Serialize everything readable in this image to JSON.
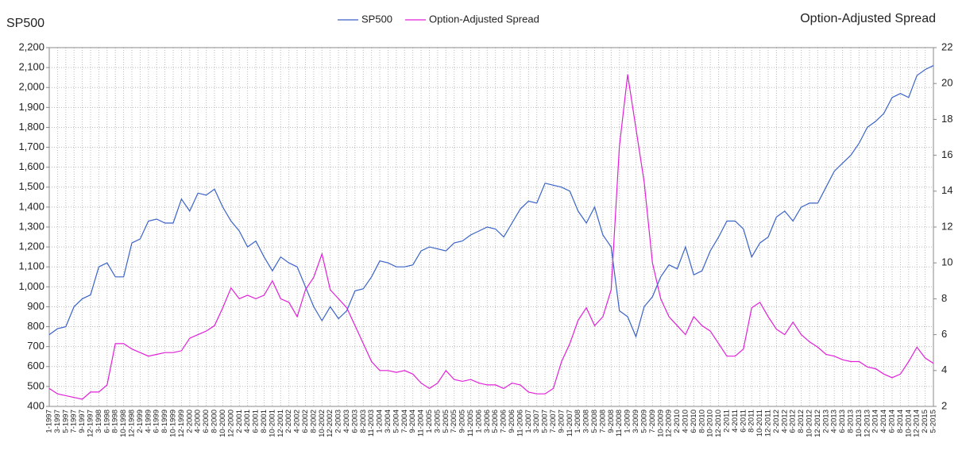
{
  "chart_data": {
    "type": "line",
    "ylabel": "SP500",
    "y2label": "Option-Adjusted Spread",
    "categories": [
      "1-1997",
      "3-1997",
      "5-1997",
      "7-1997",
      "9-1997",
      "12-1997",
      "3-1998",
      "6-1998",
      "8-1998",
      "10-1998",
      "12-1998",
      "2-1999",
      "4-1999",
      "6-1999",
      "8-1999",
      "10-1999",
      "12-1999",
      "2-2000",
      "4-2000",
      "6-2000",
      "8-2000",
      "10-2000",
      "12-2000",
      "2-2001",
      "4-2001",
      "6-2001",
      "8-2001",
      "10-2001",
      "12-2001",
      "2-2002",
      "4-2002",
      "6-2002",
      "8-2002",
      "10-2002",
      "12-2002",
      "2-2003",
      "4-2003",
      "6-2003",
      "8-2003",
      "11-2003",
      "1-2004",
      "3-2004",
      "5-2004",
      "7-2004",
      "9-2004",
      "11-2004",
      "1-2005",
      "3-2005",
      "5-2005",
      "7-2005",
      "9-2005",
      "11-2005",
      "1-2006",
      "3-2006",
      "5-2006",
      "7-2006",
      "9-2006",
      "11-2006",
      "1-2007",
      "3-2007",
      "5-2007",
      "7-2007",
      "9-2007",
      "11-2007",
      "1-2008",
      "3-2008",
      "5-2008",
      "7-2008",
      "9-2008",
      "11-2008",
      "1-2009",
      "3-2009",
      "5-2009",
      "7-2009",
      "10-2009",
      "12-2009",
      "2-2010",
      "4-2010",
      "6-2010",
      "8-2010",
      "10-2010",
      "12-2010",
      "2-2011",
      "4-2011",
      "6-2011",
      "8-2011",
      "10-2011",
      "12-2011",
      "2-2012",
      "4-2012",
      "6-2012",
      "8-2012",
      "10-2012",
      "12-2012",
      "2-2013",
      "4-2013",
      "6-2013",
      "8-2013",
      "10-2013",
      "12-2013",
      "2-2014",
      "4-2014",
      "6-2014",
      "8-2014",
      "10-2014",
      "12-2014",
      "2-2015",
      "5-2015"
    ],
    "series": [
      {
        "name": "SP500",
        "color": "#3a62c8",
        "axis": "y",
        "values": [
          760,
          790,
          800,
          900,
          940,
          960,
          1100,
          1120,
          1050,
          1050,
          1220,
          1240,
          1330,
          1340,
          1320,
          1320,
          1440,
          1380,
          1470,
          1460,
          1490,
          1400,
          1330,
          1280,
          1200,
          1230,
          1150,
          1080,
          1150,
          1120,
          1100,
          1000,
          900,
          830,
          900,
          840,
          880,
          980,
          990,
          1050,
          1130,
          1120,
          1100,
          1100,
          1110,
          1180,
          1200,
          1190,
          1180,
          1220,
          1230,
          1260,
          1280,
          1300,
          1290,
          1250,
          1320,
          1390,
          1430,
          1420,
          1520,
          1510,
          1500,
          1480,
          1380,
          1320,
          1400,
          1260,
          1200,
          880,
          850,
          750,
          900,
          950,
          1050,
          1110,
          1090,
          1200,
          1060,
          1080,
          1180,
          1250,
          1330,
          1330,
          1290,
          1150,
          1220,
          1250,
          1350,
          1380,
          1330,
          1400,
          1420,
          1420,
          1500,
          1580,
          1620,
          1660,
          1720,
          1800,
          1830,
          1870,
          1950,
          1970,
          1950,
          2060,
          2090,
          2110
        ]
      },
      {
        "name": "Option-Adjusted Spread",
        "color": "#e020d8",
        "axis": "y2",
        "values": [
          3.0,
          2.7,
          2.6,
          2.5,
          2.4,
          2.8,
          2.8,
          3.2,
          5.5,
          5.5,
          5.2,
          5.0,
          4.8,
          4.9,
          5.0,
          5.0,
          5.1,
          5.8,
          6.0,
          6.2,
          6.5,
          7.5,
          8.6,
          8.0,
          8.2,
          8.0,
          8.2,
          9.0,
          8.0,
          7.8,
          7.0,
          8.5,
          9.2,
          10.5,
          8.5,
          8.0,
          7.5,
          6.5,
          5.5,
          4.5,
          4.0,
          4.0,
          3.9,
          4.0,
          3.8,
          3.3,
          3.0,
          3.3,
          4.0,
          3.5,
          3.4,
          3.5,
          3.3,
          3.2,
          3.2,
          3.0,
          3.3,
          3.2,
          2.8,
          2.7,
          2.7,
          3.0,
          4.5,
          5.5,
          6.8,
          7.5,
          6.5,
          7.0,
          8.5,
          16.5,
          20.5,
          17.5,
          14.5,
          10.0,
          8.0,
          7.0,
          6.5,
          6.0,
          7.0,
          6.5,
          6.2,
          5.5,
          4.8,
          4.8,
          5.2,
          7.5,
          7.8,
          7.0,
          6.3,
          6.0,
          6.7,
          6.0,
          5.6,
          5.3,
          4.9,
          4.8,
          4.6,
          4.5,
          4.5,
          4.2,
          4.1,
          3.8,
          3.6,
          3.8,
          4.5,
          5.3,
          4.7,
          4.4
        ]
      }
    ],
    "ylim": [
      400,
      2200
    ],
    "yticks": [
      {
        "value": 400,
        "label": "400"
      },
      {
        "value": 500,
        "label": "500"
      },
      {
        "value": 600,
        "label": "600"
      },
      {
        "value": 700,
        "label": "700"
      },
      {
        "value": 800,
        "label": "800"
      },
      {
        "value": 900,
        "label": "900"
      },
      {
        "value": 1000,
        "label": "1,000"
      },
      {
        "value": 1100,
        "label": "1,100"
      },
      {
        "value": 1200,
        "label": "1,200"
      },
      {
        "value": 1300,
        "label": "1,300"
      },
      {
        "value": 1400,
        "label": "1,400"
      },
      {
        "value": 1500,
        "label": "1,500"
      },
      {
        "value": 1600,
        "label": "1,600"
      },
      {
        "value": 1700,
        "label": "1,700"
      },
      {
        "value": 1800,
        "label": "1,800"
      },
      {
        "value": 1900,
        "label": "1,900"
      },
      {
        "value": 2000,
        "label": "2,000"
      },
      {
        "value": 2100,
        "label": "2,100"
      },
      {
        "value": 2200,
        "label": "2,200"
      }
    ],
    "y2lim": [
      2,
      22
    ],
    "y2ticks": [
      2,
      4,
      6,
      8,
      10,
      12,
      14,
      16,
      18,
      20,
      22
    ],
    "grid": true
  }
}
